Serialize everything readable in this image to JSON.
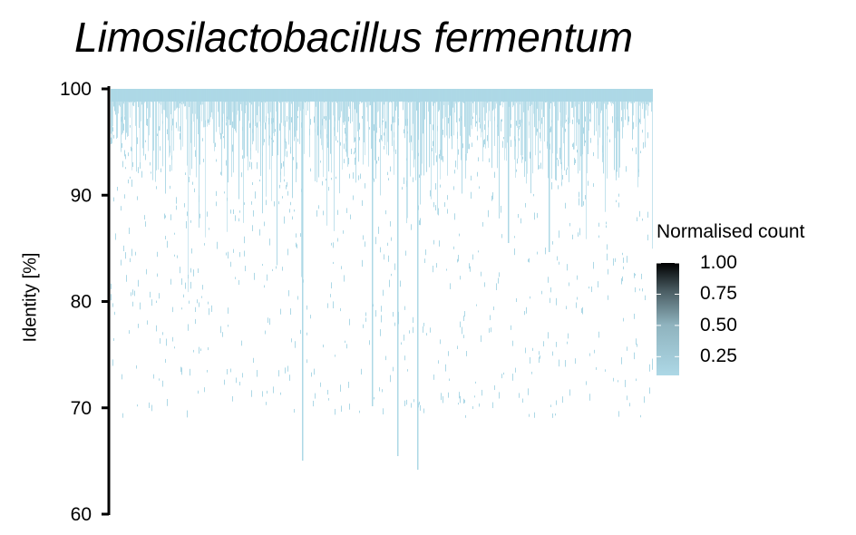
{
  "chart_data": {
    "type": "heatmap",
    "title": "Limosilactobacillus fermentum",
    "ylabel": "Identity [%]",
    "xlabel": "",
    "ylim": [
      60,
      100
    ],
    "yticks": [
      "60",
      "70",
      "80",
      "90",
      "100"
    ],
    "x_axis_visible": false,
    "grid": false,
    "colorscale": {
      "title": "Normalised count",
      "low_color": "#add8e6",
      "high_color": "#000000",
      "ticks": [
        "0.25",
        "0.50",
        "0.75",
        "1.00"
      ],
      "range": [
        0.1,
        1.0
      ]
    },
    "low_density_columns": [
      0.37,
      0.535
    ]
  }
}
